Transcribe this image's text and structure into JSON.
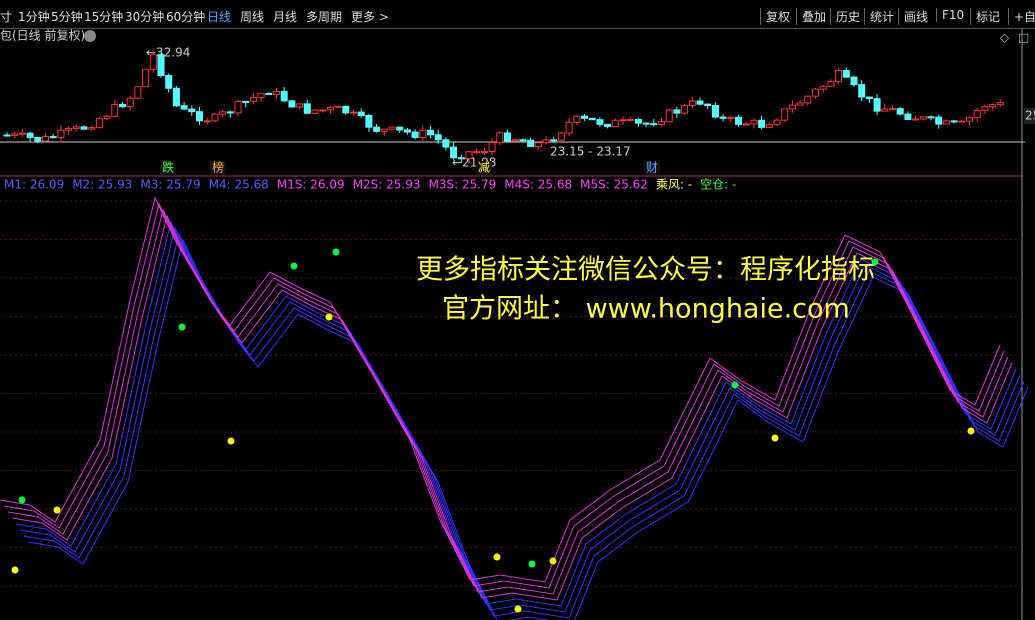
{
  "toolbar": {
    "cut_label": "寸",
    "periods": [
      "1分钟",
      "5分钟",
      "15分钟",
      "30分钟",
      "60分钟",
      "日线",
      "周线",
      "月线",
      "多周期",
      "更多 >"
    ],
    "active_period": "日线",
    "tools": [
      "复权",
      "叠加",
      "历史",
      "统计",
      "画线",
      "F10",
      "标记",
      "+自选"
    ]
  },
  "main_chart": {
    "title": "包(日线 前复权)",
    "high_label": "←32.94",
    "low_label": "←21.98",
    "range_label": "23.15 - 23.17",
    "axis_label": "25",
    "markers": [
      "跌",
      "榜",
      "减",
      "财"
    ]
  },
  "indicator": {
    "items": [
      {
        "text": "M1: 26.09",
        "color": "#5a5aff"
      },
      {
        "text": "M2: 25.93",
        "color": "#5a5aff"
      },
      {
        "text": "M3: 25.79",
        "color": "#5a5aff"
      },
      {
        "text": "M4: 25.68",
        "color": "#5a5aff"
      },
      {
        "text": "M1S: 26.09",
        "color": "#ff40ff"
      },
      {
        "text": "M2S: 25.93",
        "color": "#ff40ff"
      },
      {
        "text": "M3S: 25.79",
        "color": "#ff40ff"
      },
      {
        "text": "M4S: 25.68",
        "color": "#ff40ff"
      },
      {
        "text": "M5S: 25.62",
        "color": "#ff40ff"
      },
      {
        "text": "乘风: -",
        "color": "#ffff40"
      },
      {
        "text": "空仓: -",
        "color": "#40ff40"
      }
    ]
  },
  "watermark": {
    "line1": "更多指标关注微信公众号：程序化指标",
    "line2": "官方网址： www.honghaie.com"
  }
}
